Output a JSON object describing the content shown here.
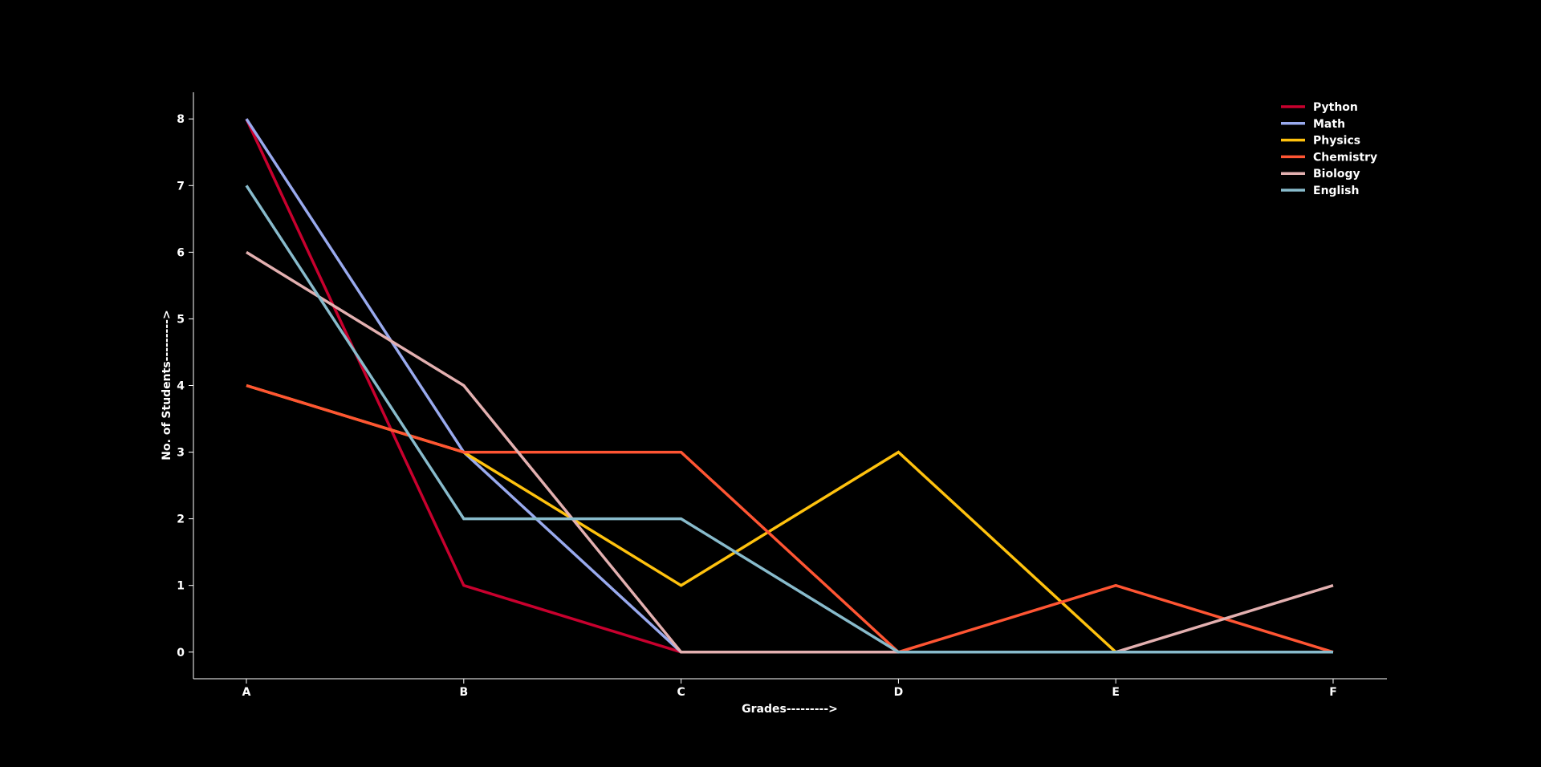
{
  "colors": {
    "background": "#000000",
    "axis": "#ffffff",
    "text": "#ffffff"
  },
  "chart_data": {
    "type": "line",
    "title": "",
    "xlabel": "Grades--------->",
    "ylabel": "No. of Students--------->",
    "categories": [
      "A",
      "B",
      "C",
      "D",
      "E",
      "F"
    ],
    "yticks": [
      0,
      1,
      2,
      3,
      4,
      5,
      6,
      7,
      8
    ],
    "ylim": [
      -0.4,
      8.4
    ],
    "grid": false,
    "legend_position": "top-right",
    "series": [
      {
        "name": "Python",
        "color": "#c8002e",
        "values": [
          8,
          1,
          0,
          0,
          0,
          0
        ]
      },
      {
        "name": "Math",
        "color": "#99aaee",
        "values": [
          8,
          3,
          0,
          0,
          0,
          0
        ]
      },
      {
        "name": "Physics",
        "color": "#ffc20e",
        "values": [
          4,
          3,
          1,
          3,
          0,
          0
        ]
      },
      {
        "name": "Chemistry",
        "color": "#ff5533",
        "values": [
          4,
          3,
          3,
          0,
          1,
          0
        ]
      },
      {
        "name": "Biology",
        "color": "#e3b0b0",
        "values": [
          6,
          4,
          0,
          0,
          0,
          1
        ]
      },
      {
        "name": "English",
        "color": "#88bbcc",
        "values": [
          7,
          2,
          2,
          0,
          0,
          0
        ]
      }
    ]
  }
}
